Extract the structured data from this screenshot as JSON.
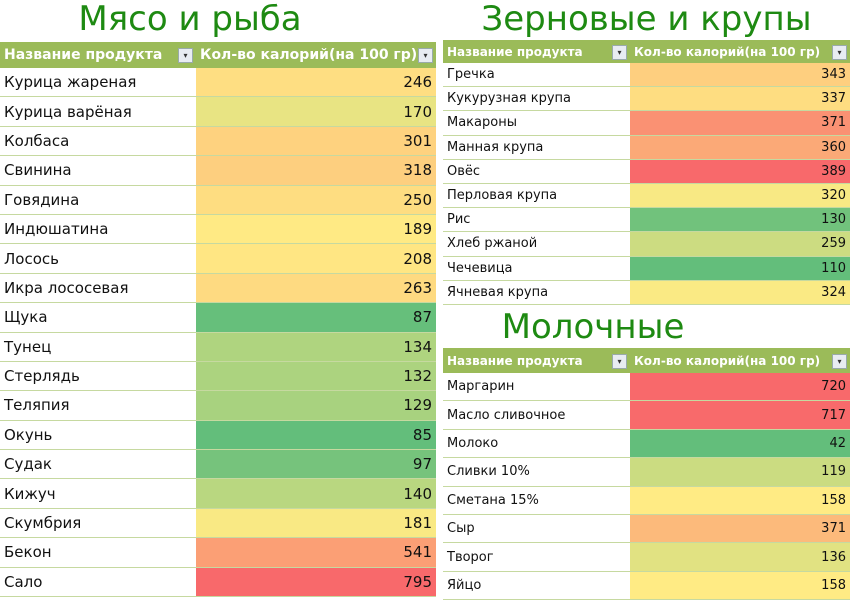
{
  "column_headers": {
    "name": "Название продукта",
    "calories": "Кол-во калорий(на 100 гр)"
  },
  "scale_colors": {
    "low": "#63BE7B",
    "mid": "#FFEB84",
    "high": "#F8696B"
  },
  "header_color": "#9BBB59",
  "title_color": "#1E8A12",
  "tables": [
    {
      "title": "Мясо и рыба",
      "rows": [
        {
          "name": "Курица жареная",
          "cal": 246
        },
        {
          "name": "Курица варёная",
          "cal": 170
        },
        {
          "name": "Колбаса",
          "cal": 301
        },
        {
          "name": "Свинина",
          "cal": 318
        },
        {
          "name": "Говядина",
          "cal": 250
        },
        {
          "name": "Индюшатина",
          "cal": 189
        },
        {
          "name": "Лосось",
          "cal": 208
        },
        {
          "name": "Икра лососевая",
          "cal": 263
        },
        {
          "name": "Щука",
          "cal": 87
        },
        {
          "name": "Тунец",
          "cal": 134
        },
        {
          "name": "Стерлядь",
          "cal": 132
        },
        {
          "name": "Теляпия",
          "cal": 129
        },
        {
          "name": "Окунь",
          "cal": 85
        },
        {
          "name": "Судак",
          "cal": 97
        },
        {
          "name": "Кижуч",
          "cal": 140
        },
        {
          "name": "Скумбрия",
          "cal": 181
        },
        {
          "name": "Бекон",
          "cal": 541
        },
        {
          "name": "Сало",
          "cal": 795
        }
      ]
    },
    {
      "title": "Зерновые и крупы",
      "rows": [
        {
          "name": "Гречка",
          "cal": 343
        },
        {
          "name": "Кукурузная крупа",
          "cal": 337
        },
        {
          "name": "Макароны",
          "cal": 371
        },
        {
          "name": "Манная крупа",
          "cal": 360
        },
        {
          "name": "Овёс",
          "cal": 389
        },
        {
          "name": "Перловая крупа",
          "cal": 320
        },
        {
          "name": "Рис",
          "cal": 130
        },
        {
          "name": "Хлеб ржаной",
          "cal": 259
        },
        {
          "name": "Чечевица",
          "cal": 110
        },
        {
          "name": "Ячневая крупа",
          "cal": 324
        }
      ]
    },
    {
      "title": "Молочные",
      "rows": [
        {
          "name": "Маргарин",
          "cal": 720
        },
        {
          "name": "Масло сливочное",
          "cal": 717
        },
        {
          "name": "Молоко",
          "cal": 42
        },
        {
          "name": "Сливки 10%",
          "cal": 119
        },
        {
          "name": "Сметана 15%",
          "cal": 158
        },
        {
          "name": "Сыр",
          "cal": 371
        },
        {
          "name": "Творог",
          "cal": 136
        },
        {
          "name": "Яйцо",
          "cal": 158
        }
      ]
    }
  ]
}
